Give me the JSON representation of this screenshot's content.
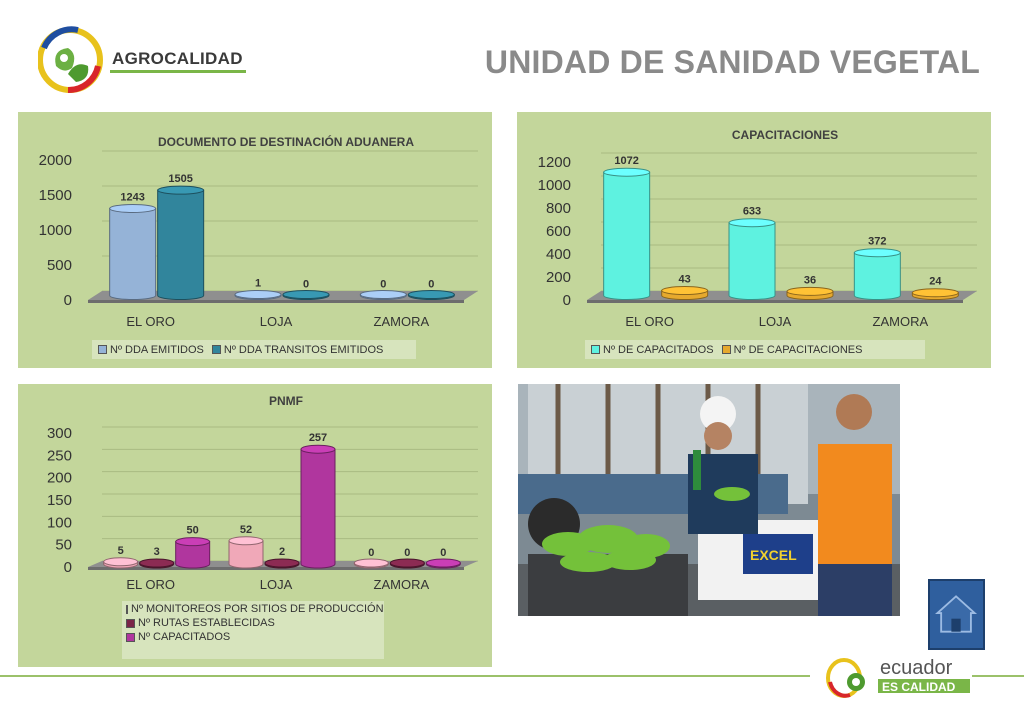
{
  "header": {
    "brand": "AGROCALIDAD",
    "title": "UNIDAD DE SANIDAD VEGETAL"
  },
  "colors": {
    "panel_bg": "#c3d69b",
    "legend_bg": "#d7e4bd",
    "title_gray": "#8a8a8a",
    "accent_green": "#7ab648"
  },
  "chart_data": [
    {
      "type": "bar",
      "title": "DOCUMENTO DE DESTINACIÓN ADUANERA",
      "categories": [
        "EL ORO",
        "LOJA",
        "ZAMORA"
      ],
      "series": [
        {
          "name": "Nº DDA EMITIDOS",
          "values": [
            1243,
            1,
            0
          ],
          "color": "#95b3d7"
        },
        {
          "name": "Nº DDA TRANSITOS EMITIDOS",
          "values": [
            1505,
            0,
            0
          ],
          "color": "#31859c"
        }
      ],
      "ylim": [
        0,
        2000
      ],
      "yticks": [
        0,
        500,
        1000,
        1500,
        2000
      ],
      "legend": "bottom"
    },
    {
      "type": "bar",
      "title": "CAPACITACIONES",
      "categories": [
        "EL ORO",
        "LOJA",
        "ZAMORA"
      ],
      "series": [
        {
          "name": "Nº DE CAPACITADOS",
          "values": [
            1072,
            633,
            372
          ],
          "color": "#5ef2e0"
        },
        {
          "name": "Nº DE CAPACITACIONES",
          "values": [
            43,
            36,
            24
          ],
          "color": "#e6a92e"
        }
      ],
      "ylim": [
        0,
        1200
      ],
      "yticks": [
        0,
        200,
        400,
        600,
        800,
        1000,
        1200
      ],
      "legend": "bottom"
    },
    {
      "type": "bar",
      "title": "PNMF",
      "categories": [
        "EL ORO",
        "LOJA",
        "ZAMORA"
      ],
      "series": [
        {
          "name": "Nº MONITOREOS  POR SITIOS DE PRODUCCIÓN",
          "values": [
            5,
            52,
            0
          ],
          "color": "#f0a8b8"
        },
        {
          "name": "Nº RUTAS ESTABLECIDAS",
          "values": [
            3,
            2,
            0
          ],
          "color": "#7a2548"
        },
        {
          "name": "Nº  CAPACITADOS",
          "values": [
            50,
            257,
            0
          ],
          "color": "#b0369e"
        }
      ],
      "ylim": [
        0,
        300
      ],
      "yticks": [
        0,
        50,
        100,
        150,
        200,
        250,
        300
      ],
      "legend": "bottom"
    }
  ],
  "footer": {
    "brand_line1": "ecuador",
    "brand_line2": "ES CALIDAD"
  },
  "home_button": {
    "icon": "home-icon"
  }
}
